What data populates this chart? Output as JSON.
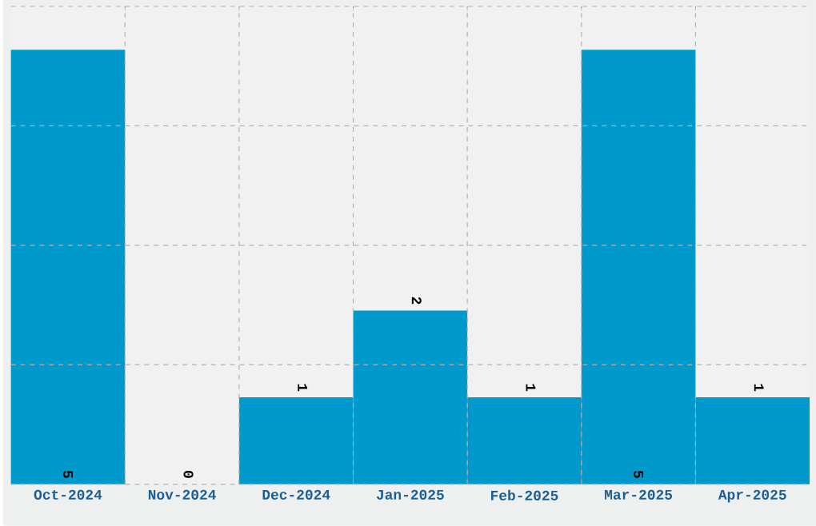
{
  "chart_data": {
    "type": "bar",
    "categories": [
      "Oct-2024",
      "Nov-2024",
      "Dec-2024",
      "Jan-2025",
      "Feb-2025",
      "Mar-2025",
      "Apr-2025"
    ],
    "values": [
      5,
      0,
      1,
      2,
      1,
      5,
      1
    ],
    "color": "#0099cc",
    "ylim": [
      0,
      5.5
    ],
    "yticks": [
      {
        "value": 0,
        "label": null
      },
      {
        "value": 1.375,
        "label": null
      },
      {
        "value": 2.75,
        "label": null
      },
      {
        "value": 4.125,
        "label": null
      },
      {
        "value": 5.5,
        "label": null
      }
    ],
    "tick_labels": "x",
    "grid": true,
    "data_labels": true
  }
}
